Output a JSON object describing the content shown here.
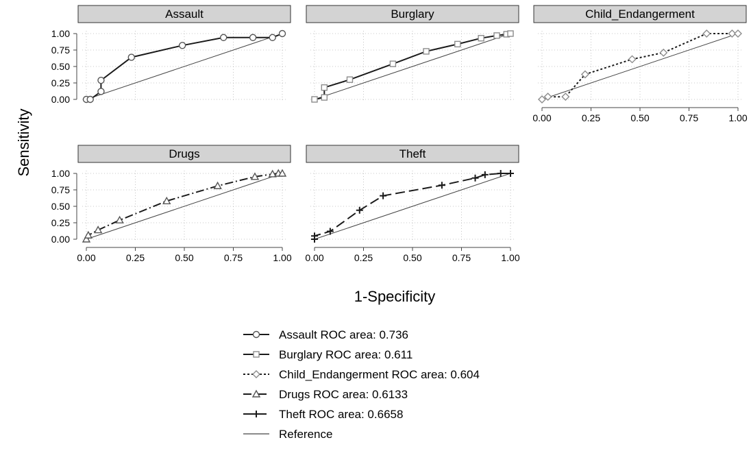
{
  "chart_data": {
    "type": "line",
    "layout": "faceted-small-multiples",
    "xlabel": "1-Specificity",
    "ylabel": "Sensitivity",
    "xlim": [
      0,
      1
    ],
    "ylim": [
      0,
      1
    ],
    "ticks": [
      "0.00",
      "0.25",
      "0.50",
      "0.75",
      "1.00"
    ],
    "grid": true,
    "legend_position": "bottom-center",
    "colors": {
      "dark": "#1a1a1a",
      "light": "#8c8c8c",
      "strip": "#d3d3d3",
      "grid": "#b5b5b5"
    },
    "panels": [
      {
        "title": "Assault",
        "legend": "Assault ROC area: 0.736",
        "marker": "circle",
        "dash": "solid",
        "color": "#1a1a1a",
        "points": [
          [
            0,
            0
          ],
          [
            0.02,
            0
          ],
          [
            0.075,
            0.12
          ],
          [
            0.075,
            0.29
          ],
          [
            0.23,
            0.64
          ],
          [
            0.49,
            0.82
          ],
          [
            0.7,
            0.94
          ],
          [
            0.85,
            0.94
          ],
          [
            0.95,
            0.94
          ],
          [
            1,
            1
          ]
        ]
      },
      {
        "title": "Burglary",
        "legend": "Burglary ROC area: 0.611",
        "marker": "square",
        "dash": "solid",
        "color": "#1a1a1a",
        "points": [
          [
            0,
            0
          ],
          [
            0.05,
            0.03
          ],
          [
            0.05,
            0.18
          ],
          [
            0.18,
            0.3
          ],
          [
            0.4,
            0.54
          ],
          [
            0.57,
            0.73
          ],
          [
            0.73,
            0.84
          ],
          [
            0.85,
            0.93
          ],
          [
            0.93,
            0.97
          ],
          [
            0.98,
            0.99
          ],
          [
            1,
            1
          ]
        ]
      },
      {
        "title": "Child_Endangerment",
        "legend": "Child_Endangerment ROC area: 0.604",
        "marker": "diamond",
        "dash": "dot",
        "color": "#1a1a1a",
        "points": [
          [
            0,
            0
          ],
          [
            0.03,
            0.04
          ],
          [
            0.12,
            0.04
          ],
          [
            0.22,
            0.38
          ],
          [
            0.46,
            0.61
          ],
          [
            0.62,
            0.71
          ],
          [
            0.84,
            1
          ],
          [
            0.97,
            1
          ],
          [
            1,
            1
          ]
        ]
      },
      {
        "title": "Drugs",
        "legend": "Drugs ROC area: 0.6133",
        "marker": "triangle",
        "dash": "dashdot",
        "color": "#1a1a1a",
        "points": [
          [
            0,
            0
          ],
          [
            0.01,
            0.06
          ],
          [
            0.06,
            0.14
          ],
          [
            0.17,
            0.29
          ],
          [
            0.41,
            0.58
          ],
          [
            0.67,
            0.81
          ],
          [
            0.86,
            0.95
          ],
          [
            0.95,
            0.99
          ],
          [
            0.98,
            1
          ],
          [
            1,
            1
          ]
        ]
      },
      {
        "title": "Theft",
        "legend": "Theft ROC area: 0.6658",
        "marker": "plus",
        "dash": "longdash",
        "color": "#1a1a1a",
        "points": [
          [
            0,
            0
          ],
          [
            0,
            0.05
          ],
          [
            0.08,
            0.12
          ],
          [
            0.23,
            0.44
          ],
          [
            0.35,
            0.66
          ],
          [
            0.65,
            0.82
          ],
          [
            0.82,
            0.93
          ],
          [
            0.87,
            0.98
          ],
          [
            0.95,
            1
          ],
          [
            1,
            1
          ]
        ]
      }
    ],
    "reference_label": "Reference"
  }
}
